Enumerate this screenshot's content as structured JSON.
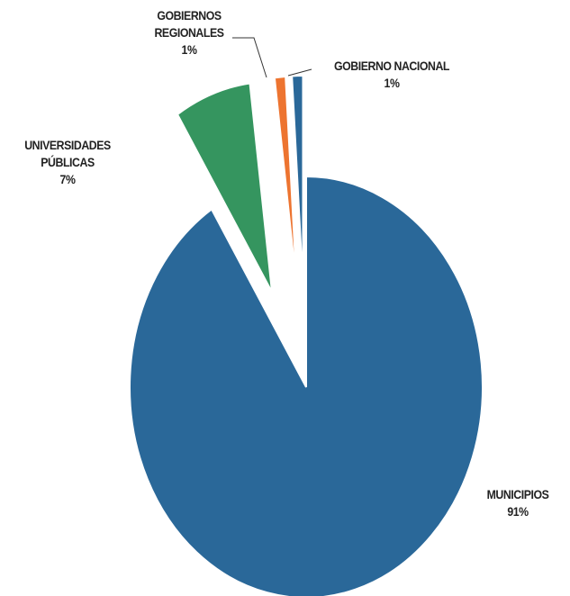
{
  "chart_data": {
    "type": "pie",
    "categories": [
      "MUNICIPIOS",
      "UNIVERSIDADES PÚBLICAS",
      "GOBIERNOS REGIONALES",
      "GOBIERNO NACIONAL"
    ],
    "values": [
      91,
      7,
      1,
      1
    ],
    "value_labels": [
      "91%",
      "7%",
      "1%",
      "1%"
    ],
    "colors": [
      "#2a6899",
      "#35955f",
      "#ed7430",
      "#2a6899"
    ]
  }
}
